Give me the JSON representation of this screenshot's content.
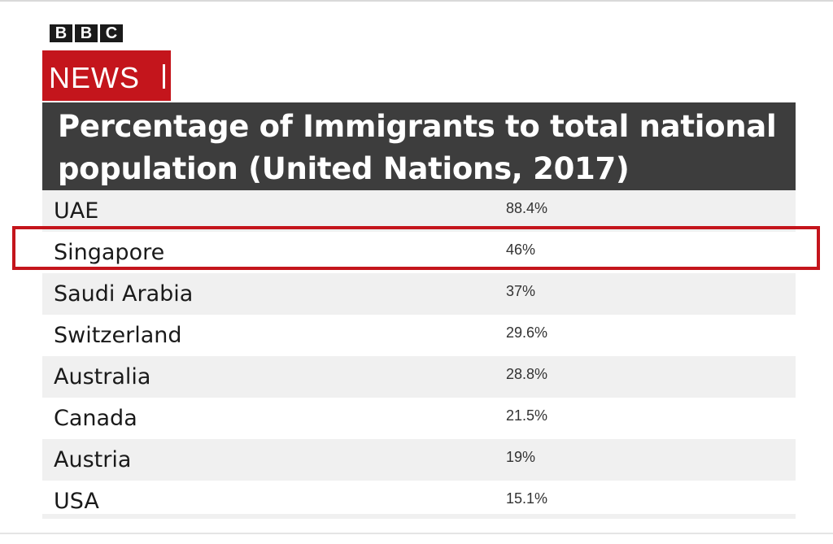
{
  "brand": {
    "bbc_letters": [
      "B",
      "B",
      "C"
    ],
    "news_label": "NEWS",
    "news_color": "#c4151c"
  },
  "chart_data": {
    "type": "table",
    "title": "Percentage of Immigrants to total national population (United Nations, 2017)",
    "rows": [
      {
        "country": "UAE",
        "value": "88.4%",
        "shaded": true
      },
      {
        "country": "Singapore",
        "value": "46%",
        "shaded": false,
        "highlighted": true
      },
      {
        "country": "Saudi Arabia",
        "value": "37%",
        "shaded": true
      },
      {
        "country": "Switzerland",
        "value": "29.6%",
        "shaded": false
      },
      {
        "country": "Australia",
        "value": "28.8%",
        "shaded": true
      },
      {
        "country": "Canada",
        "value": "21.5%",
        "shaded": false
      },
      {
        "country": "Austria",
        "value": "19%",
        "shaded": true
      },
      {
        "country": "USA",
        "value": "15.1%",
        "shaded": false
      }
    ],
    "values_numeric": [
      88.4,
      46,
      37,
      29.6,
      28.8,
      21.5,
      19,
      15.1
    ],
    "highlight_color": "#c4151c",
    "header_color": "#3d3d3d",
    "shade_color": "#f0f0f0"
  }
}
